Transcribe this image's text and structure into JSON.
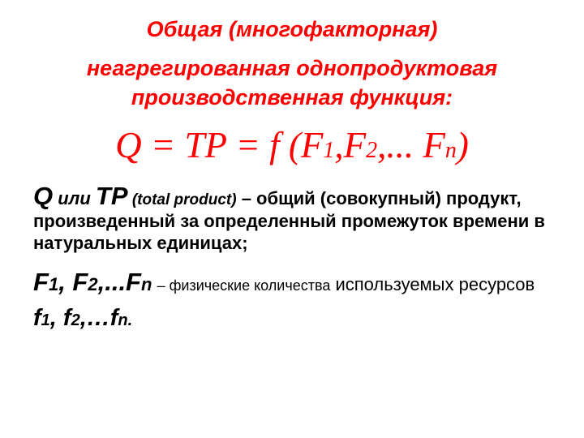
{
  "colors": {
    "primary_red": "#ff0000",
    "text_black": "#000000",
    "background": "#ffffff"
  },
  "typography": {
    "title_fontsize": 27,
    "formula_fontsize": 45,
    "formula_sub_fontsize": 28,
    "body_fontsize": 22,
    "lead_symbol_fontsize": 31
  },
  "title": {
    "line1": "Общая (многофакторная)",
    "line2": "неагрегированная однопродуктовая производственная функция:"
  },
  "formula": {
    "Q": "Q",
    "eq1": " = ",
    "TP": "TP",
    "eq2": " = ",
    "f": "f (F",
    "s1": "1",
    "comma1": ",F",
    "s2": "2",
    "dots": ",... F",
    "sn": "n",
    "close": ")"
  },
  "para1": {
    "Q": "Q",
    "ili": " или ",
    "TP": "TP",
    "paren": " (total product)",
    "rest": " – общий (совокупный) продукт, произведенный за определенный промежуток времени в натуральных единицах;"
  },
  "para2": {
    "F1": "F",
    "s1": "1",
    "c1": ", F",
    "s2": "2",
    "c2": ",...F",
    "sn": "n",
    "sp": "  ",
    "dash": "– физические количества",
    "mid": " используемых ресурсов ",
    "f1": "f",
    "ls1": "1",
    "lc1": ", f",
    "ls2": "2",
    "lc2": ",…f",
    "lsn": "n",
    "dot": "."
  }
}
